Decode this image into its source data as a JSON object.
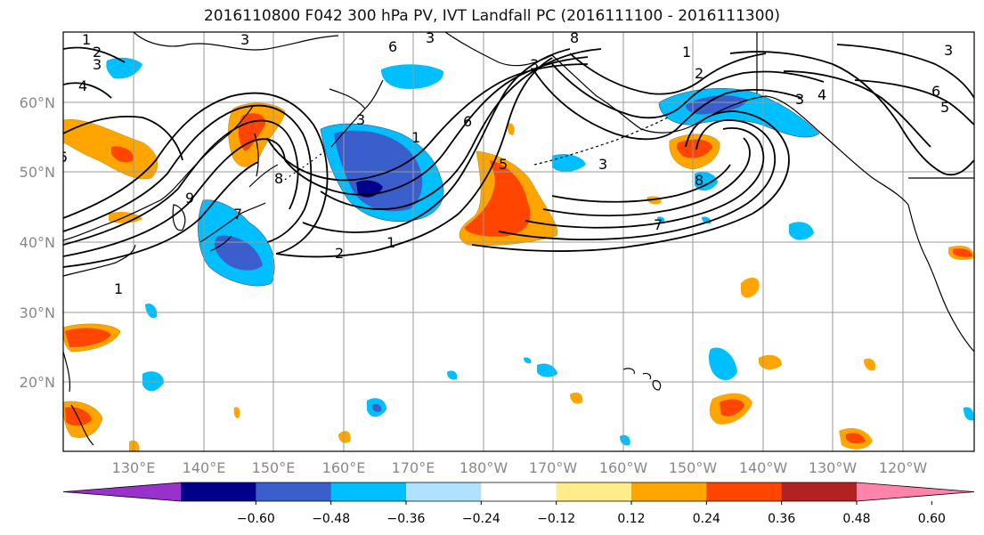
{
  "title": "2016110800 F042 300 hPa PV, IVT Landfall PC (2016111100 - 2016111300)",
  "lat_labels": [
    "60°N",
    "50°N",
    "40°N",
    "30°N",
    "20°N"
  ],
  "lon_labels": [
    "130°E",
    "140°E",
    "150°E",
    "160°E",
    "170°E",
    "180°W",
    "170°W",
    "160°W",
    "150°W",
    "140°W",
    "130°W",
    "120°W"
  ],
  "colorbar": {
    "colors": [
      "#9932cc",
      "#00008b",
      "#3a5fcd",
      "#00bfff",
      "#b0e2ff",
      "#ffffff",
      "#ffec8b",
      "#ffa500",
      "#ff4500",
      "#b22222",
      "#ff83aa"
    ],
    "tick_labels": [
      "−0.60",
      "−0.48",
      "−0.36",
      "−0.24",
      "−0.12",
      "0.12",
      "0.24",
      "0.36",
      "0.48",
      "0.60"
    ],
    "tick_values": [
      -0.6,
      -0.48,
      -0.36,
      -0.24,
      -0.12,
      0.12,
      0.24,
      0.36,
      0.48,
      0.6
    ]
  },
  "contour_labels": [
    "1",
    "2",
    "3",
    "4",
    "5",
    "6",
    "7",
    "8",
    "9"
  ],
  "colors": {
    "grid": "#999999",
    "tick_text": "#888888",
    "contour": "#000000",
    "coast": "#000000"
  }
}
